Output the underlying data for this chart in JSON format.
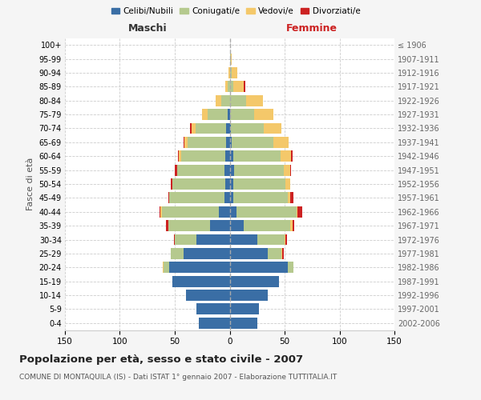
{
  "age_groups": [
    "0-4",
    "5-9",
    "10-14",
    "15-19",
    "20-24",
    "25-29",
    "30-34",
    "35-39",
    "40-44",
    "45-49",
    "50-54",
    "55-59",
    "60-64",
    "65-69",
    "70-74",
    "75-79",
    "80-84",
    "85-89",
    "90-94",
    "95-99",
    "100+"
  ],
  "birth_years": [
    "2002-2006",
    "1997-2001",
    "1992-1996",
    "1987-1991",
    "1982-1986",
    "1977-1981",
    "1972-1976",
    "1967-1971",
    "1962-1966",
    "1957-1961",
    "1952-1956",
    "1947-1951",
    "1942-1946",
    "1937-1941",
    "1932-1936",
    "1927-1931",
    "1922-1926",
    "1917-1921",
    "1912-1916",
    "1907-1911",
    "≤ 1906"
  ],
  "maschi": {
    "celibi": [
      28,
      30,
      40,
      52,
      55,
      42,
      30,
      18,
      10,
      5,
      4,
      5,
      4,
      3,
      3,
      2,
      0,
      0,
      0,
      0,
      0
    ],
    "coniugati": [
      0,
      0,
      0,
      0,
      5,
      12,
      20,
      38,
      52,
      50,
      48,
      43,
      40,
      35,
      28,
      18,
      8,
      2,
      0,
      0,
      0
    ],
    "vedovi": [
      0,
      0,
      0,
      0,
      1,
      0,
      0,
      0,
      1,
      0,
      0,
      0,
      2,
      3,
      4,
      5,
      5,
      2,
      1,
      0,
      0
    ],
    "divorziati": [
      0,
      0,
      0,
      0,
      0,
      0,
      1,
      2,
      1,
      1,
      2,
      2,
      1,
      1,
      1,
      0,
      0,
      0,
      0,
      0,
      0
    ]
  },
  "femmine": {
    "nubili": [
      25,
      27,
      35,
      45,
      53,
      35,
      25,
      13,
      6,
      3,
      3,
      4,
      3,
      2,
      1,
      0,
      0,
      0,
      0,
      0,
      0
    ],
    "coniugate": [
      0,
      0,
      0,
      0,
      5,
      12,
      25,
      42,
      55,
      50,
      48,
      45,
      43,
      38,
      30,
      22,
      15,
      3,
      2,
      1,
      0
    ],
    "vedove": [
      0,
      0,
      0,
      0,
      0,
      1,
      1,
      2,
      1,
      2,
      4,
      6,
      10,
      14,
      16,
      18,
      15,
      10,
      5,
      1,
      0
    ],
    "divorziate": [
      0,
      0,
      0,
      0,
      0,
      1,
      1,
      2,
      4,
      3,
      0,
      1,
      1,
      0,
      0,
      0,
      0,
      1,
      0,
      0,
      0
    ]
  },
  "colors": {
    "celibi": "#3a6ea5",
    "coniugati": "#b5c98e",
    "vedovi": "#f4c86a",
    "divorziati": "#cc2222"
  },
  "title": "Popolazione per età, sesso e stato civile - 2007",
  "subtitle": "COMUNE DI MONTAQUILA (IS) - Dati ISTAT 1° gennaio 2007 - Elaborazione TUTTITALIA.IT",
  "xlabel_left": "Maschi",
  "xlabel_right": "Femmine",
  "ylabel_left": "Fasce di età",
  "xlim": 150,
  "bg_color": "#f5f5f5",
  "plot_bg": "#ffffff",
  "grid_color": "#cccccc"
}
